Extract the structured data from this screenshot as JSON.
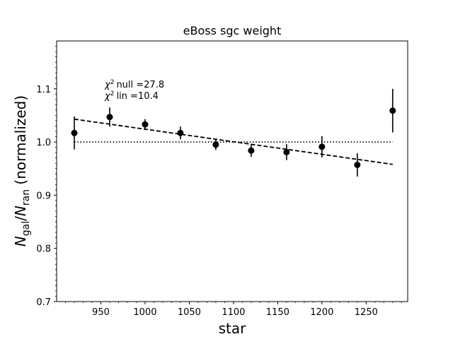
{
  "chart_data": {
    "type": "scatter",
    "title": "eBoss sgc weight",
    "xlabel": "star",
    "ylabel": {
      "base_a": "N",
      "sub_a": "gal",
      "sep": "/",
      "base_b": "N",
      "sub_b": "ran",
      "suffix": " (normalized)"
    },
    "xlim": [
      900,
      1297
    ],
    "ylim": [
      0.7,
      1.19
    ],
    "xticks": [
      950,
      1000,
      1050,
      1100,
      1150,
      1200,
      1250
    ],
    "yticks": [
      0.7,
      0.8,
      0.9,
      1.0,
      1.1
    ],
    "ytick_labels": [
      "0.7",
      "0.8",
      "0.9",
      "1.0",
      "1.1"
    ],
    "grid": false,
    "points": [
      {
        "x": 920,
        "y": 1.017,
        "err": 0.031
      },
      {
        "x": 960,
        "y": 1.047,
        "err": 0.018
      },
      {
        "x": 1000,
        "y": 1.033,
        "err": 0.01
      },
      {
        "x": 1040,
        "y": 1.017,
        "err": 0.012
      },
      {
        "x": 1080,
        "y": 0.995,
        "err": 0.01
      },
      {
        "x": 1120,
        "y": 0.984,
        "err": 0.012
      },
      {
        "x": 1160,
        "y": 0.981,
        "err": 0.015
      },
      {
        "x": 1200,
        "y": 0.991,
        "err": 0.02
      },
      {
        "x": 1240,
        "y": 0.957,
        "err": 0.022
      },
      {
        "x": 1280,
        "y": 1.059,
        "err": 0.041
      }
    ],
    "null_line": {
      "y": 1.0,
      "x_start": 920,
      "x_end": 1280,
      "style": "dotted"
    },
    "linear_fit": {
      "x_start": 920,
      "y_start": 1.043,
      "x_end": 1280,
      "y_end": 0.958,
      "style": "dashed"
    },
    "annotations": {
      "chi2_null": {
        "label": "null =27.8"
      },
      "chi2_lin": {
        "label": "lin =10.4"
      }
    },
    "colors": {
      "points": "#000000",
      "lines": "#000000",
      "background": "#ffffff"
    }
  }
}
